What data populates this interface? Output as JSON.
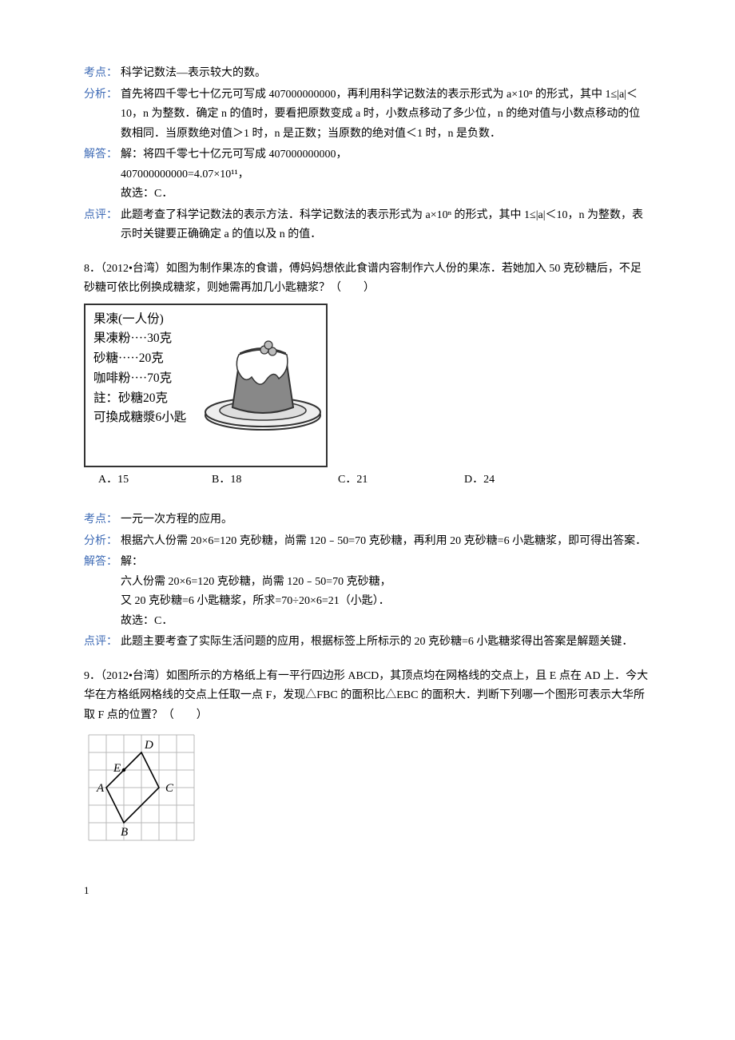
{
  "q7": {
    "kaodian_label": "考点：",
    "kaodian": "科学记数法—表示较大的数。",
    "fenxi_label": "分析：",
    "fenxi": "首先将四千零七十亿元可写成 407000000000，再利用科学记数法的表示形式为 a×10ⁿ 的形式，其中 1≤|a|＜10，n 为整数．确定 n 的值时，要看把原数变成 a 时，小数点移动了多少位，n 的绝对值与小数点移动的位数相同．当原数绝对值＞1 时，n 是正数；当原数的绝对值＜1 时，n 是负数．",
    "jieda_label": "解答：",
    "jieda_l1": "解：将四千零七十亿元可写成 407000000000，",
    "jieda_l2": "407000000000=4.07×10¹¹，",
    "jieda_l3": "故选：C．",
    "dianping_label": "点评：",
    "dianping": "此题考查了科学记数法的表示方法．科学记数法的表示形式为 a×10ⁿ 的形式，其中 1≤|a|＜10，n 为整数，表示时关键要正确确定 a 的值以及 n 的值．"
  },
  "q8": {
    "stem": "8．（2012•台湾）如图为制作果冻的食谱，傅妈妈想依此食谱内容制作六人份的果冻．若她加入 50 克砂糖后，不足砂糖可依比例换成糖浆，则她需再加几小匙糖浆？（　　）",
    "recipe": {
      "title": "果凍(一人份)",
      "l1": "果凍粉····30克",
      "l2": "砂糖·····20克",
      "l3": "咖啡粉····70克",
      "note1": "註：砂糖20克",
      "note2": "可換成糖漿6小匙"
    },
    "choices": {
      "A": "A．15",
      "B": "B．18",
      "C": "C．21",
      "D": "D．24"
    },
    "kaodian_label": "考点：",
    "kaodian": "一元一次方程的应用。",
    "fenxi_label": "分析：",
    "fenxi": "根据六人份需 20×6=120 克砂糖，尚需 120﹣50=70 克砂糖，再利用 20 克砂糖=6 小匙糖浆，即可得出答案．",
    "jieda_label": "解答：",
    "jieda_l1": "解：",
    "jieda_l2": "六人份需 20×6=120 克砂糖，尚需 120﹣50=70 克砂糖，",
    "jieda_l3": "又 20 克砂糖=6 小匙糖浆，所求=70÷20×6=21（小匙）．",
    "jieda_l4": "故选：C．",
    "dianping_label": "点评：",
    "dianping": "此题主要考查了实际生活问题的应用，根据标签上所标示的 20 克砂糖=6 小匙糖浆得出答案是解题关键．"
  },
  "q9": {
    "stem": "9．（2012•台湾）如图所示的方格纸上有一平行四边形 ABCD，其顶点均在网格线的交点上，且 E 点在 AD 上．今大华在方格纸网格线的交点上任取一点 F，发现△FBC 的面积比△EBC 的面积大．判断下列哪一个图形可表示大华所取 F 点的位置？（　　）",
    "grid": {
      "cols": 6,
      "rows": 6,
      "cell": 22,
      "ox": 6,
      "oy": 6,
      "line_color": "#b8b8b8",
      "line_w": 1,
      "poly_color": "#000",
      "poly_w": 1.6,
      "A": [
        1,
        3
      ],
      "B": [
        2,
        5
      ],
      "C": [
        4,
        3
      ],
      "D": [
        3,
        1
      ],
      "E": [
        2,
        2
      ],
      "label_fs": 15
    }
  },
  "footer": "1"
}
